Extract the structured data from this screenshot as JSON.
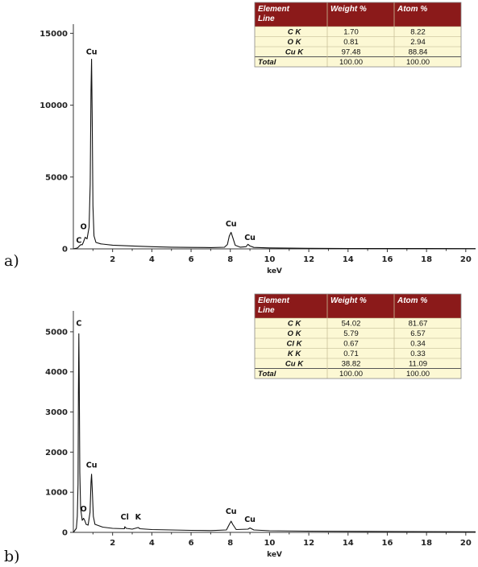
{
  "chart_data": [
    {
      "panel_label": "a)",
      "type": "line",
      "xlabel": "keV",
      "x_range": [
        0,
        20.5
      ],
      "y_range": [
        0,
        15300
      ],
      "x_ticks": [
        2,
        4,
        6,
        8,
        10,
        12,
        14,
        16,
        18,
        20
      ],
      "y_ticks": [
        0,
        5000,
        10000,
        15000
      ],
      "spectrum": [
        [
          0.0,
          0
        ],
        [
          0.2,
          60
        ],
        [
          0.28,
          150
        ],
        [
          0.3,
          200
        ],
        [
          0.35,
          250
        ],
        [
          0.4,
          300
        ],
        [
          0.45,
          280
        ],
        [
          0.52,
          500
        ],
        [
          0.6,
          800
        ],
        [
          0.7,
          700
        ],
        [
          0.8,
          1500
        ],
        [
          0.86,
          4500
        ],
        [
          0.9,
          11000
        ],
        [
          0.93,
          13200
        ],
        [
          0.96,
          9000
        ],
        [
          1.0,
          3000
        ],
        [
          1.05,
          900
        ],
        [
          1.15,
          450
        ],
        [
          1.4,
          350
        ],
        [
          2.0,
          260
        ],
        [
          3.0,
          200
        ],
        [
          4.0,
          150
        ],
        [
          5.0,
          120
        ],
        [
          6.0,
          100
        ],
        [
          7.0,
          90
        ],
        [
          7.7,
          110
        ],
        [
          7.85,
          300
        ],
        [
          7.95,
          900
        ],
        [
          8.04,
          1150
        ],
        [
          8.12,
          800
        ],
        [
          8.25,
          250
        ],
        [
          8.5,
          120
        ],
        [
          8.8,
          150
        ],
        [
          8.9,
          320
        ],
        [
          9.0,
          200
        ],
        [
          9.2,
          100
        ],
        [
          10.0,
          70
        ],
        [
          11.0,
          50
        ],
        [
          12.0,
          40
        ],
        [
          14.0,
          30
        ],
        [
          16.0,
          25
        ],
        [
          18.0,
          20
        ],
        [
          20.5,
          15
        ]
      ],
      "peaks": [
        {
          "label": "C",
          "x": 0.28,
          "y": 150
        },
        {
          "label": "O",
          "x": 0.52,
          "y": 1100
        },
        {
          "label": "Cu",
          "x": 0.93,
          "y": 13250
        },
        {
          "label": "Cu",
          "x": 8.04,
          "y": 1280
        },
        {
          "label": "Cu",
          "x": 9.0,
          "y": 340
        }
      ],
      "table": {
        "columns": [
          "Element Line",
          "Weight %",
          "Atom %"
        ],
        "header_lines": [
          [
            "Element",
            "Line"
          ],
          [
            "Weight %"
          ],
          [
            "Atom %"
          ]
        ],
        "rows": [
          [
            "C K",
            "1.70",
            "8.22"
          ],
          [
            "O K",
            "0.81",
            "2.94"
          ],
          [
            "Cu K",
            "97.48",
            "88.84"
          ],
          [
            "Total",
            "100.00",
            "100.00"
          ]
        ]
      }
    },
    {
      "panel_label": "b)",
      "type": "line",
      "xlabel": "keV",
      "x_range": [
        0,
        20.5
      ],
      "y_range": [
        0,
        5400
      ],
      "x_ticks": [
        2,
        4,
        6,
        8,
        10,
        12,
        14,
        16,
        18,
        20
      ],
      "y_ticks": [
        0,
        1000,
        2000,
        3000,
        4000,
        5000
      ],
      "spectrum": [
        [
          0.0,
          0
        ],
        [
          0.15,
          100
        ],
        [
          0.2,
          400
        ],
        [
          0.24,
          1200
        ],
        [
          0.26,
          3500
        ],
        [
          0.28,
          4950
        ],
        [
          0.3,
          3800
        ],
        [
          0.33,
          1500
        ],
        [
          0.37,
          600
        ],
        [
          0.45,
          300
        ],
        [
          0.52,
          350
        ],
        [
          0.58,
          300
        ],
        [
          0.65,
          200
        ],
        [
          0.75,
          180
        ],
        [
          0.85,
          500
        ],
        [
          0.9,
          1250
        ],
        [
          0.93,
          1450
        ],
        [
          0.97,
          1000
        ],
        [
          1.02,
          400
        ],
        [
          1.1,
          200
        ],
        [
          1.5,
          130
        ],
        [
          2.0,
          100
        ],
        [
          2.6,
          90
        ],
        [
          2.62,
          140
        ],
        [
          2.7,
          100
        ],
        [
          3.0,
          80
        ],
        [
          3.3,
          120
        ],
        [
          3.4,
          90
        ],
        [
          4.0,
          70
        ],
        [
          5.0,
          60
        ],
        [
          6.0,
          50
        ],
        [
          7.0,
          45
        ],
        [
          7.8,
          60
        ],
        [
          7.95,
          200
        ],
        [
          8.04,
          280
        ],
        [
          8.12,
          200
        ],
        [
          8.3,
          70
        ],
        [
          8.9,
          80
        ],
        [
          9.0,
          110
        ],
        [
          9.2,
          60
        ],
        [
          10.0,
          40
        ],
        [
          12.0,
          30
        ],
        [
          15.0,
          25
        ],
        [
          20.5,
          15
        ]
      ],
      "peaks": [
        {
          "label": "C",
          "x": 0.28,
          "y": 5050
        },
        {
          "label": "O",
          "x": 0.52,
          "y": 420
        },
        {
          "label": "Cu",
          "x": 0.93,
          "y": 1520
        },
        {
          "label": "Cl",
          "x": 2.62,
          "y": 220
        },
        {
          "label": "K",
          "x": 3.3,
          "y": 220
        },
        {
          "label": "Cu",
          "x": 8.04,
          "y": 360
        },
        {
          "label": "Cu",
          "x": 9.0,
          "y": 160
        }
      ],
      "table": {
        "columns": [
          "Element Line",
          "Weight %",
          "Atom %"
        ],
        "header_lines": [
          [
            "Element",
            "Line"
          ],
          [
            "Weight %"
          ],
          [
            "Atom %"
          ]
        ],
        "rows": [
          [
            "C K",
            "54.02",
            "81.67"
          ],
          [
            "O K",
            "5.79",
            "6.57"
          ],
          [
            "Cl K",
            "0.67",
            "0.34"
          ],
          [
            "K K",
            "0.71",
            "0.33"
          ],
          [
            "Cu K",
            "38.82",
            "11.09"
          ],
          [
            "Total",
            "100.00",
            "100.00"
          ]
        ]
      }
    }
  ]
}
